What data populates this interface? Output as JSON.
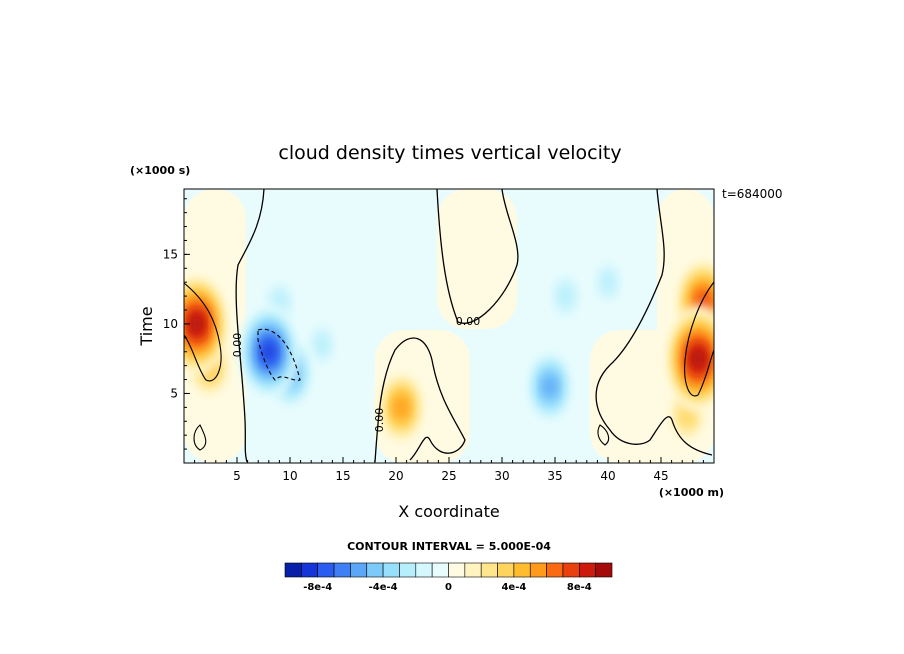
{
  "chart_data": {
    "type": "heatmap",
    "title": "cloud density times vertical velocity",
    "xlabel": "X coordinate",
    "ylabel": "Time",
    "x_units": "(×1000 m)",
    "y_units": "(×1000 s)",
    "annotation": "t=684000",
    "xlim": [
      0,
      50
    ],
    "ylim": [
      0,
      19.7
    ],
    "x_ticks": [
      5,
      10,
      15,
      20,
      25,
      30,
      35,
      40,
      45
    ],
    "y_ticks": [
      5,
      10,
      15
    ],
    "contour_interval_text": "CONTOUR INTERVAL = 5.000E-04",
    "contour_label": "0.00",
    "colorbar": {
      "levels": [
        -0.001,
        -0.0009,
        -0.0008,
        -0.0007,
        -0.0006,
        -0.0005,
        -0.0004,
        -0.0003,
        -0.0002,
        -0.0001,
        0,
        0.0001,
        0.0002,
        0.0003,
        0.0004,
        0.0005,
        0.0006,
        0.0007,
        0.0008,
        0.0009,
        0.001
      ],
      "colors": [
        "#0a1fa8",
        "#1535d9",
        "#2a5cf0",
        "#3f7ff5",
        "#5ba6f7",
        "#7ccafa",
        "#96e0fb",
        "#b6eefc",
        "#d4f8fd",
        "#e9fcfd",
        "#fffbe3",
        "#fff3c0",
        "#ffe68c",
        "#ffd45e",
        "#ffbc2e",
        "#ff9a1a",
        "#f96a12",
        "#e8400f",
        "#cc1a0c",
        "#a50a0a"
      ],
      "tick_labels": [
        "-8e-4",
        "-4e-4",
        "0",
        "4e-4",
        "8e-4"
      ],
      "tick_values": [
        -0.0008,
        -0.0004,
        0,
        0.0004,
        0.0008
      ]
    },
    "features": [
      {
        "x": 1.2,
        "y": 10.0,
        "value": 0.00095
      },
      {
        "x": 2.4,
        "y": 7.0,
        "value": 0.0005
      },
      {
        "x": 8.0,
        "y": 8.0,
        "value": -0.00085
      },
      {
        "x": 10.0,
        "y": 6.5,
        "value": -0.0006
      },
      {
        "x": 9.0,
        "y": 11.5,
        "value": -0.0003
      },
      {
        "x": 13.0,
        "y": 8.5,
        "value": -0.00025
      },
      {
        "x": 20.5,
        "y": 4.0,
        "value": 0.0006
      },
      {
        "x": 34.5,
        "y": 5.5,
        "value": -0.0006
      },
      {
        "x": 36.0,
        "y": 12.0,
        "value": -0.0003
      },
      {
        "x": 40.0,
        "y": 13.0,
        "value": -0.00025
      },
      {
        "x": 48.5,
        "y": 7.5,
        "value": 0.001
      },
      {
        "x": 49.0,
        "y": 11.5,
        "value": 0.0008
      },
      {
        "x": 47.5,
        "y": 3.5,
        "value": 0.0004
      }
    ]
  }
}
